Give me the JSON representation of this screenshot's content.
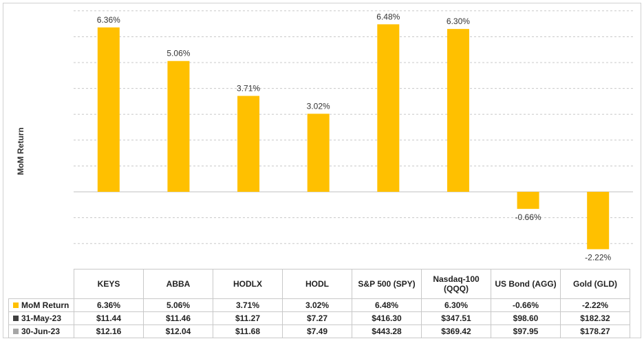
{
  "chart_data": {
    "type": "bar",
    "ylabel": "MoM Return",
    "categories": [
      "KEYS",
      "ABBA",
      "HODLX",
      "HODL",
      "S&P 500 (SPY)",
      "Nasdaq-100 (QQQ)",
      "US Bond (AGG)",
      "Gold (GLD)"
    ],
    "values": [
      6.36,
      5.06,
      3.71,
      3.02,
      6.48,
      6.3,
      -0.66,
      -2.22
    ],
    "data_labels": [
      "6.36%",
      "5.06%",
      "3.71%",
      "3.02%",
      "6.48%",
      "6.30%",
      "-0.66%",
      "-2.22%"
    ],
    "ylim": [
      -3,
      7
    ],
    "gridlines": true,
    "bar_color": "#FFC000",
    "table": {
      "header": [
        "KEYS",
        "ABBA",
        "HODLX",
        "HODL",
        "S&P 500 (SPY)",
        "Nasdaq-100 (QQQ)",
        "US Bond (AGG)",
        "Gold (GLD)"
      ],
      "rows": [
        {
          "label": "MoM Return",
          "key_color": "#FFC000",
          "cells": [
            "6.36%",
            "5.06%",
            "3.71%",
            "3.02%",
            "6.48%",
            "6.30%",
            "-0.66%",
            "-2.22%"
          ]
        },
        {
          "label": "31-May-23",
          "key_color": "#404040",
          "cells": [
            "$11.44",
            "$11.46",
            "$11.27",
            "$7.27",
            "$416.30",
            "$347.51",
            "$98.60",
            "$182.32"
          ]
        },
        {
          "label": "30-Jun-23",
          "key_color": "#A6A6A6",
          "cells": [
            "$12.16",
            "$12.04",
            "$11.68",
            "$7.49",
            "$443.28",
            "$369.42",
            "$97.95",
            "$178.27"
          ]
        }
      ]
    }
  }
}
